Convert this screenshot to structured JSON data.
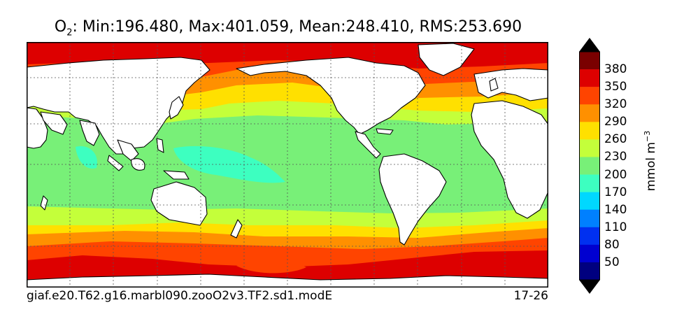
{
  "title": {
    "variable_main": "O",
    "variable_sub": "2",
    "stats": ": Min:196.480, Max:401.059, Mean:248.410, RMS:253.690"
  },
  "footer": {
    "case_name": "giaf.e20.T62.g16.marbl090.zooO2v3.TF2.sd1.modE",
    "depth_range": "17-26"
  },
  "colorbar": {
    "unit_base": "mmol m",
    "unit_exp": "−3",
    "ticks": [
      "380",
      "350",
      "320",
      "290",
      "260",
      "230",
      "200",
      "170",
      "140",
      "110",
      "80",
      "50"
    ],
    "colors_top_to_bottom": [
      "#7a0000",
      "#dd0000",
      "#ff4400",
      "#ff9000",
      "#ffe000",
      "#c4ff3a",
      "#78f078",
      "#3dffc0",
      "#00d8ff",
      "#0080ff",
      "#0030f0",
      "#0000d0",
      "#00007f"
    ],
    "over_color": "#000000",
    "under_color": "#000000"
  },
  "map_colors": {
    "land": "#ffffff",
    "coast": "#000000",
    "grid": "#555555",
    "band_380": "#dd0000",
    "band_350": "#ff4400",
    "band_320": "#ff9000",
    "band_290": "#ffe000",
    "band_260": "#c4ff3a",
    "band_230": "#78f078",
    "band_200": "#3dffc0"
  }
}
